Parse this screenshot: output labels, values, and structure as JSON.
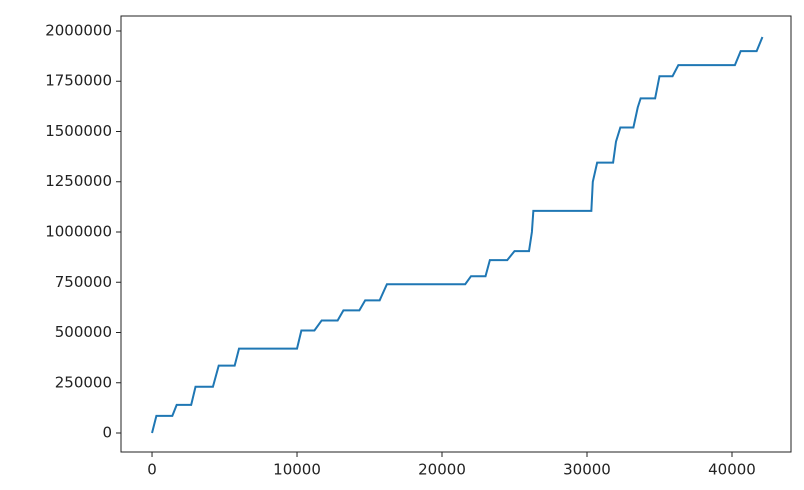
{
  "chart_data": {
    "type": "line",
    "color": "#1f77b4",
    "x": [
      0,
      300,
      1400,
      1700,
      2700,
      3000,
      4200,
      4600,
      5700,
      6000,
      10000,
      10300,
      11200,
      11700,
      12800,
      13200,
      14300,
      14700,
      15700,
      16200,
      21600,
      22000,
      23000,
      23300,
      24500,
      25000,
      26000,
      26200,
      26300,
      30300,
      30400,
      30700,
      31800,
      32000,
      32300,
      33200,
      33500,
      33700,
      34700,
      35000,
      35900,
      36300,
      40200,
      40600,
      41700,
      42100
    ],
    "values": [
      0,
      85000,
      85000,
      140000,
      140000,
      230000,
      230000,
      335000,
      335000,
      420000,
      420000,
      510000,
      510000,
      560000,
      560000,
      610000,
      610000,
      660000,
      660000,
      740000,
      740000,
      780000,
      780000,
      860000,
      860000,
      905000,
      905000,
      1000000,
      1105000,
      1105000,
      1250000,
      1345000,
      1345000,
      1450000,
      1520000,
      1520000,
      1620000,
      1665000,
      1665000,
      1775000,
      1775000,
      1830000,
      1830000,
      1900000,
      1900000,
      1970000
    ],
    "xlim": [
      -2140,
      44070
    ],
    "ylim": [
      -94500,
      2074600
    ],
    "xticks": [
      0,
      10000,
      20000,
      30000,
      40000
    ],
    "yticks": [
      0,
      250000,
      500000,
      750000,
      1000000,
      1250000,
      1500000,
      1750000,
      2000000
    ]
  }
}
